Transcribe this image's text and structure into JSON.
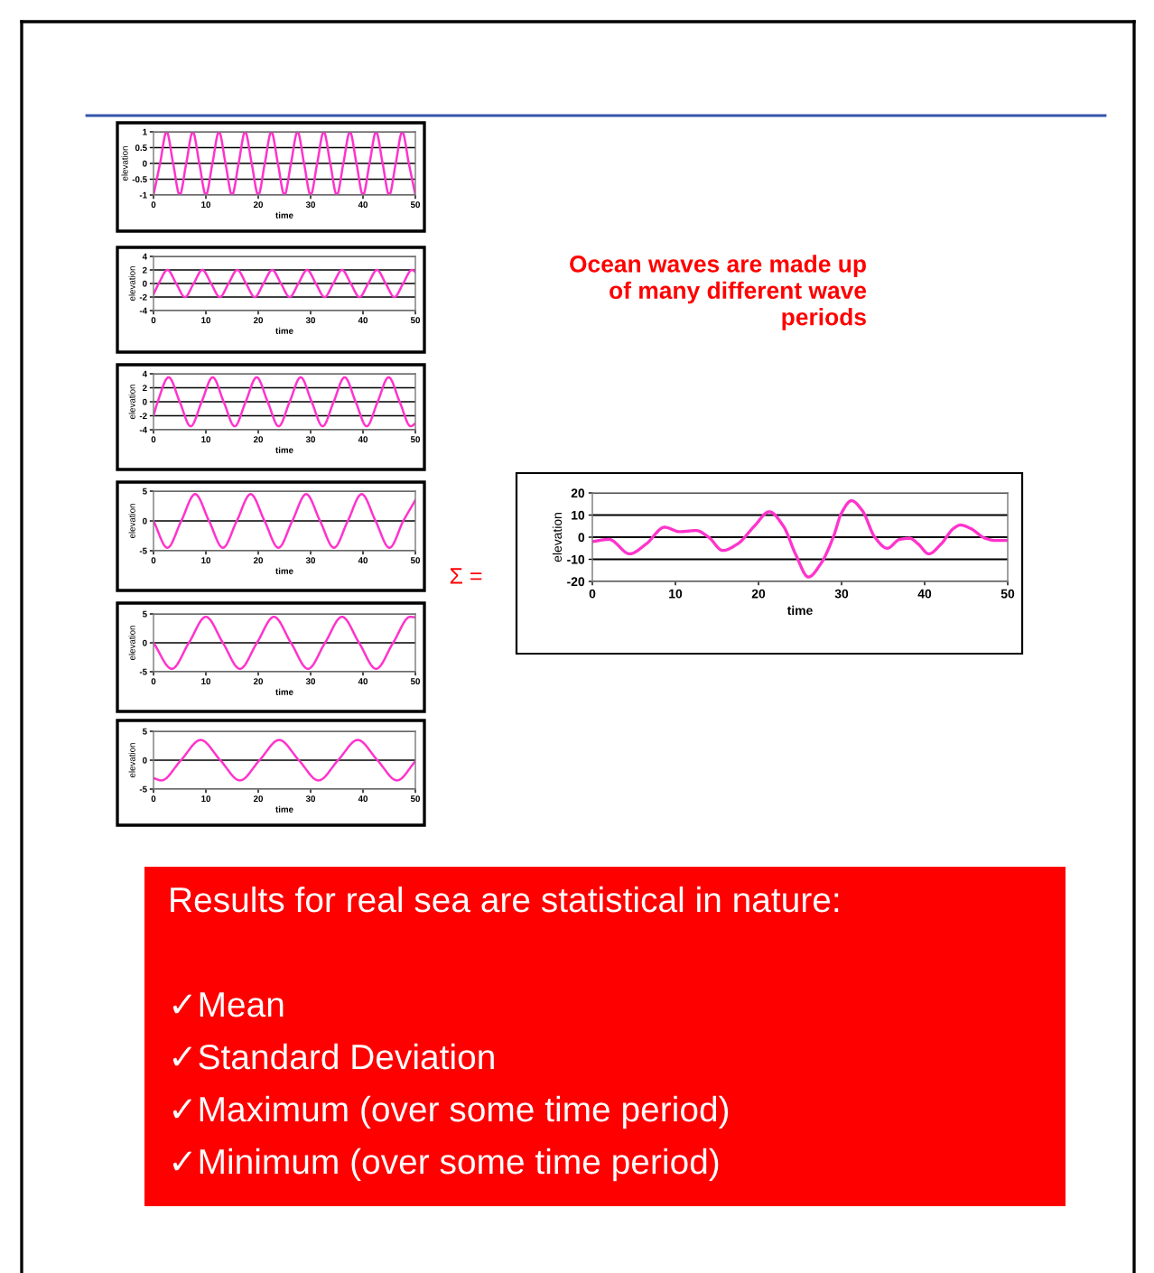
{
  "chart_data": [
    {
      "type": "line",
      "xlabel": "time",
      "ylabel": "elevation",
      "xlim": [
        0,
        50
      ],
      "xticks": [
        0,
        10,
        20,
        30,
        40,
        50
      ],
      "ylim": [
        -1,
        1
      ],
      "yticks": [
        -1,
        -0.5,
        0,
        0.5,
        1
      ],
      "grid": "y",
      "marker": "none",
      "line_style": "solid",
      "series": [
        {
          "color": "#ff33cc",
          "x": [
            0,
            1.25,
            2.5,
            3.75,
            5,
            6.25,
            7.5,
            8.75,
            10,
            11.25,
            12.5,
            13.75,
            15,
            16.25,
            17.5,
            18.75,
            20,
            21.25,
            22.5,
            23.75,
            25,
            26.25,
            27.5,
            28.75,
            30,
            31.25,
            32.5,
            33.75,
            35,
            36.25,
            37.5,
            38.75,
            40,
            41.25,
            42.5,
            43.75,
            45,
            46.25,
            47.5,
            48.75,
            50
          ],
          "values": [
            -1,
            0,
            1,
            0,
            -1,
            0,
            1,
            0,
            -1,
            0,
            1,
            0,
            -1,
            0,
            1,
            0,
            -1,
            0,
            1,
            0,
            -1,
            0,
            1,
            0,
            -1,
            0,
            1,
            0,
            -1,
            0,
            1,
            0,
            -1,
            0,
            1,
            0,
            -1,
            0,
            1,
            0,
            -1
          ]
        }
      ]
    },
    {
      "type": "line",
      "xlabel": "time",
      "ylabel": "elevation",
      "xlim": [
        0,
        50
      ],
      "xticks": [
        0,
        10,
        20,
        30,
        40,
        50
      ],
      "ylim": [
        -4,
        4
      ],
      "yticks": [
        -4,
        -2,
        0,
        2,
        4
      ],
      "grid": "y",
      "marker": "none",
      "line_style": "solid",
      "series": [
        {
          "color": "#ff33cc",
          "x": [
            0,
            1,
            2.67,
            4.33,
            6,
            7.67,
            9.33,
            11,
            12.67,
            14.33,
            16,
            17.67,
            19.33,
            21,
            22.67,
            24.33,
            26,
            27.67,
            29.33,
            31,
            32.67,
            34.33,
            36,
            37.67,
            39.33,
            41,
            42.67,
            44.33,
            46,
            47.67,
            49.33,
            50
          ],
          "values": [
            -1.6,
            0,
            2,
            0,
            -2,
            0,
            2,
            0,
            -2,
            0,
            2,
            0,
            -2,
            0,
            2,
            0,
            -2,
            0,
            2,
            0,
            -2,
            0,
            2,
            0,
            -2,
            0,
            2,
            0,
            -2,
            0,
            2,
            1.7
          ]
        }
      ]
    },
    {
      "type": "line",
      "xlabel": "time",
      "ylabel": "elevation",
      "xlim": [
        0,
        50
      ],
      "xticks": [
        0,
        10,
        20,
        30,
        40,
        50
      ],
      "ylim": [
        -4,
        4
      ],
      "yticks": [
        -4,
        -2,
        0,
        2,
        4
      ],
      "grid": "y",
      "marker": "none",
      "line_style": "solid",
      "series": [
        {
          "color": "#ff33cc",
          "x": [
            0,
            0.8,
            2.9,
            5,
            7.1,
            9.2,
            11.3,
            13.4,
            15.5,
            17.6,
            19.7,
            21.8,
            23.9,
            26,
            28.1,
            30.2,
            32.3,
            34.4,
            36.5,
            38.6,
            40.7,
            42.8,
            44.9,
            47,
            49.1,
            50
          ],
          "values": [
            -2,
            0,
            3.5,
            0,
            -3.5,
            0,
            3.5,
            0,
            -3.5,
            0,
            3.5,
            0,
            -3.5,
            0,
            3.5,
            0,
            -3.5,
            0,
            3.5,
            0,
            -3.5,
            0,
            3.5,
            0,
            -3.5,
            -3.1
          ]
        }
      ]
    },
    {
      "type": "line",
      "xlabel": "time",
      "ylabel": "elevation",
      "xlim": [
        0,
        50
      ],
      "xticks": [
        0,
        10,
        20,
        30,
        40,
        50
      ],
      "ylim": [
        -5,
        5
      ],
      "yticks": [
        -5,
        0,
        5
      ],
      "grid": "y",
      "marker": "none",
      "line_style": "solid",
      "series": [
        {
          "color": "#ff33cc",
          "x": [
            0,
            2.65,
            5.3,
            7.95,
            10.6,
            13.25,
            15.9,
            18.55,
            21.2,
            23.85,
            26.5,
            29.15,
            31.8,
            34.45,
            37.1,
            39.75,
            42.4,
            45.05,
            47.7,
            50
          ],
          "values": [
            0,
            -4.5,
            0,
            4.5,
            0,
            -4.5,
            0,
            4.5,
            0,
            -4.5,
            0,
            4.5,
            0,
            -4.5,
            0,
            4.5,
            0,
            -4.5,
            0,
            3.5
          ]
        }
      ]
    },
    {
      "type": "line",
      "xlabel": "time",
      "ylabel": "elevation",
      "xlim": [
        0,
        50
      ],
      "xticks": [
        0,
        10,
        20,
        30,
        40,
        50
      ],
      "ylim": [
        -5,
        5
      ],
      "yticks": [
        -5,
        0,
        5
      ],
      "grid": "y",
      "marker": "none",
      "line_style": "solid",
      "series": [
        {
          "color": "#ff33cc",
          "x": [
            0,
            3.5,
            6.75,
            10,
            13.25,
            16.5,
            19.75,
            23,
            26.25,
            29.5,
            32.75,
            36,
            39.25,
            42.5,
            45.75,
            49,
            50
          ],
          "values": [
            0,
            -4.5,
            0,
            4.5,
            0,
            -4.5,
            0,
            4.5,
            0,
            -4.5,
            0,
            4.5,
            0,
            -4.5,
            0,
            4.5,
            4.4
          ]
        }
      ]
    },
    {
      "type": "line",
      "xlabel": "time",
      "ylabel": "elevation",
      "xlim": [
        0,
        50
      ],
      "xticks": [
        0,
        10,
        20,
        30,
        40,
        50
      ],
      "ylim": [
        -5,
        5
      ],
      "yticks": [
        -5,
        0,
        5
      ],
      "grid": "y",
      "marker": "none",
      "line_style": "solid",
      "series": [
        {
          "color": "#ff33cc",
          "x": [
            0,
            1.5,
            5.25,
            9,
            12.75,
            16.5,
            20.25,
            24,
            27.75,
            31.5,
            35.25,
            39,
            42.75,
            46.5,
            50
          ],
          "values": [
            -3.1,
            -3.5,
            0,
            3.5,
            0,
            -3.5,
            0,
            3.5,
            0,
            -3.5,
            0,
            3.5,
            0,
            -3.5,
            -0.2
          ]
        }
      ]
    },
    {
      "type": "line",
      "xlabel": "time",
      "ylabel": "elevation",
      "xlim": [
        0,
        50
      ],
      "xticks": [
        0,
        10,
        20,
        30,
        40,
        50
      ],
      "ylim": [
        -20,
        20
      ],
      "yticks": [
        -20,
        -10,
        0,
        10,
        20
      ],
      "grid": "y",
      "marker": "none",
      "line_style": "solid",
      "annotations": [
        "Ocean waves are made up\nof many different wave\nperiods",
        "Σ ="
      ],
      "series": [
        {
          "color": "#ff33cc",
          "x": [
            0,
            2,
            4.5,
            6.5,
            8.7,
            10.5,
            12.5,
            14,
            15.7,
            17.5,
            19.5,
            21.3,
            23,
            24.5,
            26,
            27.5,
            29,
            30,
            31.2,
            32.5,
            34,
            35.5,
            37,
            38.2,
            39.2,
            40.5,
            42,
            43.5,
            44.3,
            45.5,
            47.3,
            48.5,
            50
          ],
          "values": [
            -2,
            -1,
            -7.5,
            -3,
            4.5,
            2.5,
            3,
            0,
            -6,
            -3,
            5,
            11.5,
            5,
            -8,
            -18,
            -12,
            0,
            11,
            16.5,
            12,
            0,
            -5,
            -1,
            -0.5,
            -3,
            -7.5,
            -3,
            4,
            5.5,
            4,
            -0.5,
            -1.5,
            -1.5
          ]
        }
      ]
    },
    {
      "type": "other",
      "title": "Results for real sea are statistical in nature:",
      "color": "#ff0000",
      "annotations": [
        "✓Mean",
        "✓Standard Deviation",
        "✓Maximum (over some time period)",
        "✓Minimum (over some time period)"
      ]
    }
  ]
}
